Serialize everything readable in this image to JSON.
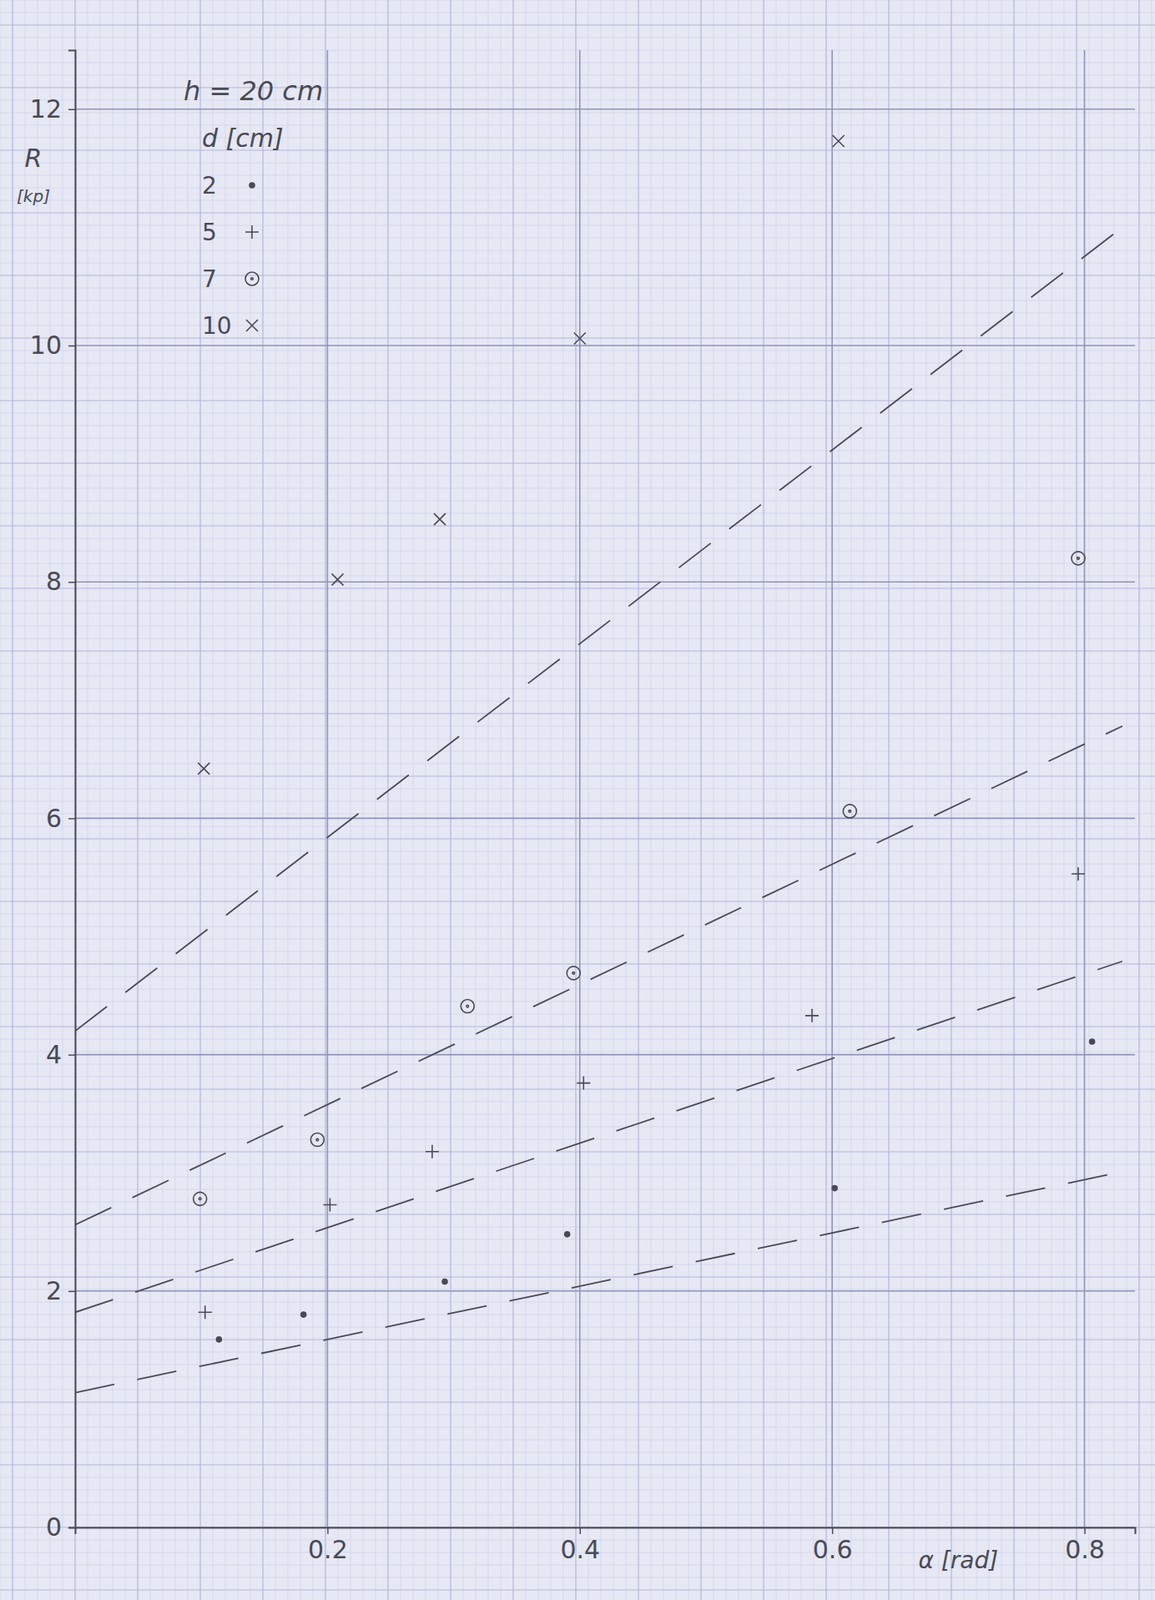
{
  "chart_data": {
    "type": "scatter",
    "annotations": [
      "h = 20 cm"
    ],
    "legend_title": "d [cm]",
    "xlabel": "α [rad]",
    "ylabel": "R [kp]",
    "xlim": [
      0,
      0.84
    ],
    "ylim": [
      0,
      12.5
    ],
    "xticks": [
      0.2,
      0.4,
      0.6,
      0.8
    ],
    "yticks": [
      0,
      2,
      4,
      6,
      8,
      10,
      12
    ],
    "grid": true,
    "legend": "upper left",
    "color": "#4a4a55",
    "series": [
      {
        "name": "2",
        "marker": "dot",
        "x": [
          0.114,
          0.181,
          0.293,
          0.39,
          0.602,
          0.806
        ],
        "values": [
          1.59,
          1.8,
          2.08,
          2.48,
          2.87,
          4.11
        ]
      },
      {
        "name": "5",
        "marker": "plus",
        "x": [
          0.103,
          0.202,
          0.283,
          0.403,
          0.584,
          0.795
        ],
        "values": [
          1.82,
          2.73,
          3.18,
          3.76,
          4.33,
          5.53
        ]
      },
      {
        "name": "7",
        "marker": "circle-dot",
        "x": [
          0.099,
          0.192,
          0.311,
          0.395,
          0.614,
          0.795
        ],
        "values": [
          2.78,
          3.28,
          4.41,
          4.69,
          6.06,
          8.2
        ]
      },
      {
        "name": "10",
        "marker": "x",
        "x": [
          0.102,
          0.208,
          0.289,
          0.4,
          0.605
        ],
        "values": [
          6.42,
          8.02,
          8.53,
          10.06,
          11.73
        ]
      },
      {
        "type": "line",
        "line_style": "dashed",
        "x": [
          0,
          0.83
        ],
        "values": [
          4.2,
          11.0
        ]
      },
      {
        "type": "line",
        "line_style": "dashed",
        "x": [
          0,
          0.83
        ],
        "values": [
          2.56,
          6.78
        ]
      },
      {
        "type": "line",
        "line_style": "dashed",
        "x": [
          0,
          0.83
        ],
        "values": [
          1.82,
          4.79
        ]
      },
      {
        "type": "line",
        "line_style": "dashed",
        "x": [
          0,
          0.83
        ],
        "values": [
          1.14,
          3.01
        ]
      }
    ]
  }
}
